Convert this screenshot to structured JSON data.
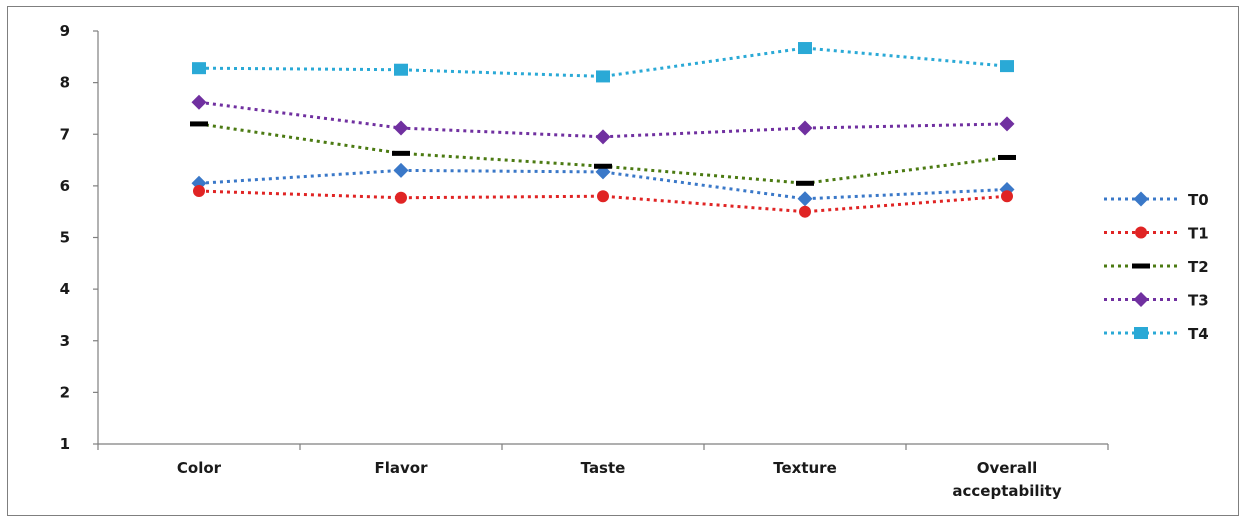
{
  "chart_data": {
    "type": "line",
    "title": "",
    "xlabel": "",
    "ylabel": "",
    "ylim": [
      1,
      9
    ],
    "yticks": [
      "1",
      "2",
      "3",
      "4",
      "5",
      "6",
      "7",
      "8",
      "9"
    ],
    "categories": [
      "Color",
      "Flavor",
      "Taste",
      "Texture",
      "Overall acceptability"
    ],
    "grid": false,
    "legend_position": "right",
    "series": [
      {
        "name": "T0",
        "values": [
          6.05,
          6.3,
          6.27,
          5.75,
          5.93
        ],
        "color": "#3a78c8",
        "marker": "diamond"
      },
      {
        "name": "T1",
        "values": [
          5.9,
          5.77,
          5.8,
          5.5,
          5.8
        ],
        "color": "#e02424",
        "marker": "circle"
      },
      {
        "name": "T2",
        "values": [
          7.2,
          6.63,
          6.38,
          6.05,
          6.55
        ],
        "color": "#4b7a12",
        "marker": "dash"
      },
      {
        "name": "T3",
        "values": [
          7.62,
          7.12,
          6.95,
          7.12,
          7.2
        ],
        "color": "#7030a0",
        "marker": "diamond"
      },
      {
        "name": "T4",
        "values": [
          8.28,
          8.25,
          8.12,
          8.67,
          8.32
        ],
        "color": "#2aa9d6",
        "marker": "square"
      }
    ]
  }
}
